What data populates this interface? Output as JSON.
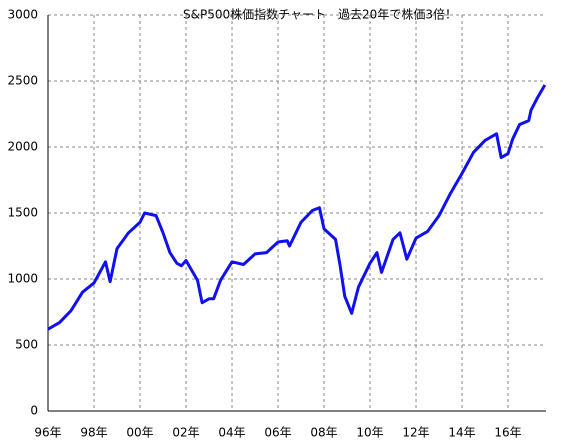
{
  "chart_data": {
    "type": "line",
    "title": "S&P500株価指数チャート　過去20年で株価3倍！",
    "x": [
      1996.0,
      1996.5,
      1997.0,
      1997.5,
      1998.0,
      1998.5,
      1998.7,
      1999.0,
      1999.5,
      2000.0,
      2000.2,
      2000.7,
      2001.0,
      2001.3,
      2001.6,
      2001.8,
      2002.0,
      2002.5,
      2002.7,
      2003.0,
      2003.2,
      2003.5,
      2004.0,
      2004.5,
      2005.0,
      2005.5,
      2006.0,
      2006.4,
      2006.5,
      2007.0,
      2007.5,
      2007.8,
      2008.0,
      2008.5,
      2008.7,
      2008.9,
      2009.2,
      2009.5,
      2010.0,
      2010.3,
      2010.5,
      2011.0,
      2011.3,
      2011.6,
      2012.0,
      2012.5,
      2013.0,
      2013.5,
      2014.0,
      2014.5,
      2015.0,
      2015.5,
      2015.7,
      2016.0,
      2016.2,
      2016.5,
      2016.9,
      2017.0,
      2017.3,
      2017.6
    ],
    "series": [
      {
        "name": "S&P500",
        "color": "#1010f0",
        "values": [
          620,
          670,
          760,
          900,
          970,
          1130,
          980,
          1230,
          1350,
          1430,
          1500,
          1480,
          1350,
          1200,
          1120,
          1100,
          1140,
          990,
          820,
          850,
          850,
          990,
          1130,
          1110,
          1190,
          1200,
          1280,
          1290,
          1250,
          1430,
          1520,
          1540,
          1380,
          1300,
          1100,
          870,
          740,
          940,
          1120,
          1200,
          1050,
          1300,
          1350,
          1150,
          1310,
          1360,
          1480,
          1650,
          1800,
          1960,
          2050,
          2100,
          1920,
          1950,
          2060,
          2170,
          2200,
          2280,
          2380,
          2470
        ]
      }
    ],
    "xlim": [
      1996,
      2017.65
    ],
    "xticks": [
      {
        "value": 1996,
        "label": "96年"
      },
      {
        "value": 1998,
        "label": "98年"
      },
      {
        "value": 2000,
        "label": "00年"
      },
      {
        "value": 2002,
        "label": "02年"
      },
      {
        "value": 2004,
        "label": "04年"
      },
      {
        "value": 2006,
        "label": "06年"
      },
      {
        "value": 2008,
        "label": "08年"
      },
      {
        "value": 2010,
        "label": "10年"
      },
      {
        "value": 2012,
        "label": "12年"
      },
      {
        "value": 2014,
        "label": "14年"
      },
      {
        "value": 2016,
        "label": "16年"
      }
    ],
    "ylim": [
      0,
      3000
    ],
    "yticks": [
      0,
      500,
      1000,
      1500,
      2000,
      2500,
      3000
    ],
    "grid": true
  }
}
